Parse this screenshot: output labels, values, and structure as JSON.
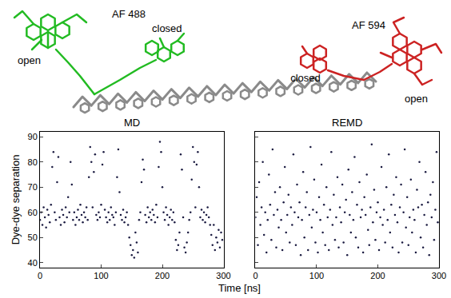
{
  "molecule": {
    "donor": "AF 488",
    "acceptor": "AF 594",
    "donor_color": "#22bb22",
    "acceptor_color": "#cc2222",
    "donor_states": [
      "open",
      "closed"
    ],
    "acceptor_states": [
      "closed",
      "open"
    ]
  },
  "shared_x_label": "Time [ns]",
  "chart_data": [
    {
      "type": "scatter",
      "title": "MD",
      "ylabel": "Dye-dye separation",
      "color": "#1a1a40",
      "marker": "dot",
      "xlim": [
        0,
        300
      ],
      "xticks": [
        0,
        100,
        200,
        300
      ],
      "ylim": [
        38,
        92
      ],
      "yticks": [
        40,
        50,
        60,
        70,
        80,
        90
      ],
      "x": [
        0,
        2,
        4,
        6,
        8,
        10,
        12,
        14,
        16,
        18,
        20,
        22,
        24,
        26,
        28,
        30,
        32,
        34,
        36,
        38,
        40,
        42,
        44,
        46,
        48,
        50,
        52,
        54,
        56,
        58,
        60,
        62,
        64,
        66,
        68,
        70,
        72,
        74,
        76,
        78,
        80,
        82,
        84,
        86,
        88,
        90,
        92,
        94,
        96,
        98,
        100,
        102,
        104,
        106,
        108,
        110,
        112,
        114,
        116,
        118,
        120,
        122,
        124,
        126,
        128,
        130,
        132,
        134,
        136,
        138,
        140,
        142,
        144,
        146,
        148,
        150,
        152,
        154,
        156,
        158,
        160,
        162,
        164,
        166,
        168,
        170,
        172,
        174,
        176,
        178,
        180,
        182,
        184,
        186,
        188,
        190,
        192,
        194,
        196,
        198,
        200,
        202,
        204,
        206,
        208,
        210,
        212,
        214,
        216,
        218,
        220,
        222,
        224,
        226,
        228,
        230,
        232,
        234,
        236,
        238,
        240,
        242,
        244,
        246,
        248,
        250,
        252,
        254,
        256,
        258,
        260,
        262,
        264,
        266,
        268,
        270,
        272,
        274,
        276,
        278,
        280,
        282,
        284,
        286,
        288,
        290,
        292,
        294,
        296,
        298
      ],
      "values": [
        57,
        60,
        55,
        62,
        58,
        54,
        61,
        59,
        56,
        63,
        78,
        84,
        60,
        57,
        72,
        82,
        58,
        55,
        61,
        59,
        56,
        62,
        58,
        66,
        60,
        80,
        71,
        57,
        60,
        55,
        58,
        61,
        57,
        63,
        59,
        56,
        60,
        58,
        62,
        57,
        74,
        86,
        80,
        62,
        76,
        83,
        59,
        57,
        60,
        58,
        63,
        79,
        84,
        61,
        58,
        56,
        60,
        57,
        62,
        59,
        58,
        55,
        60,
        74,
        85,
        68,
        59,
        57,
        61,
        56,
        58,
        60,
        55,
        50,
        47,
        43,
        45,
        42,
        52,
        48,
        44,
        57,
        60,
        72,
        81,
        77,
        59,
        56,
        62,
        58,
        60,
        57,
        61,
        59,
        56,
        63,
        58,
        78,
        88,
        84,
        70,
        60,
        57,
        62,
        59,
        55,
        58,
        61,
        57,
        60,
        56,
        49,
        45,
        47,
        52,
        83,
        77,
        58,
        46,
        44,
        48,
        52,
        57,
        60,
        73,
        86,
        80,
        62,
        79,
        84,
        70,
        58,
        61,
        57,
        60,
        56,
        59,
        62,
        58,
        55,
        51,
        47,
        55,
        45,
        50,
        48,
        53,
        46,
        52,
        49
      ]
    },
    {
      "type": "scatter",
      "title": "REMD",
      "color": "#1a1a40",
      "marker": "dot",
      "tick_labels": "x",
      "xlim": [
        0,
        300
      ],
      "xticks": [
        0,
        100,
        200,
        300
      ],
      "ylim": [
        38,
        92
      ],
      "yticks": [
        40,
        50,
        60,
        70,
        80,
        90
      ],
      "x": [
        0,
        2,
        4,
        6,
        8,
        10,
        12,
        14,
        16,
        18,
        20,
        22,
        24,
        26,
        28,
        30,
        32,
        34,
        36,
        38,
        40,
        42,
        44,
        46,
        48,
        50,
        52,
        54,
        56,
        58,
        60,
        62,
        64,
        66,
        68,
        70,
        72,
        74,
        76,
        78,
        80,
        82,
        84,
        86,
        88,
        90,
        92,
        94,
        96,
        98,
        100,
        102,
        104,
        106,
        108,
        110,
        112,
        114,
        116,
        118,
        120,
        122,
        124,
        126,
        128,
        130,
        132,
        134,
        136,
        138,
        140,
        142,
        144,
        146,
        148,
        150,
        152,
        154,
        156,
        158,
        160,
        162,
        164,
        166,
        168,
        170,
        172,
        174,
        176,
        178,
        180,
        182,
        184,
        186,
        188,
        190,
        192,
        194,
        196,
        198,
        200,
        202,
        204,
        206,
        208,
        210,
        212,
        214,
        216,
        218,
        220,
        222,
        224,
        226,
        228,
        230,
        232,
        234,
        236,
        238,
        240,
        242,
        244,
        246,
        248,
        250,
        252,
        254,
        256,
        258,
        260,
        262,
        264,
        266,
        268,
        270,
        272,
        274,
        276,
        278,
        280,
        282,
        284,
        286,
        288,
        290,
        292,
        294,
        296,
        298
      ],
      "values": [
        58,
        66,
        47,
        72,
        55,
        62,
        80,
        51,
        60,
        44,
        57,
        75,
        63,
        49,
        85,
        59,
        68,
        46,
        61,
        54,
        70,
        57,
        45,
        64,
        78,
        52,
        59,
        67,
        48,
        62,
        55,
        83,
        60,
        47,
        71,
        58,
        64,
        43,
        57,
        76,
        50,
        62,
        68,
        45,
        59,
        86,
        54,
        61,
        73,
        48,
        60,
        44,
        66,
        57,
        79,
        52,
        63,
        47,
        70,
        58,
        45,
        61,
        84,
        55,
        67,
        49,
        58,
        74,
        46,
        62,
        56,
        71,
        48,
        60,
        65,
        43,
        77,
        59,
        52,
        68,
        57,
        82,
        50,
        63,
        46,
        72,
        58,
        61,
        44,
        66,
        59,
        75,
        53,
        47,
        62,
        87,
        56,
        69,
        49,
        60,
        64,
        45,
        58,
        78,
        55,
        61,
        48,
        70,
        57,
        83,
        52,
        63,
        46,
        67,
        59,
        74,
        56,
        44,
        62,
        71,
        48,
        60,
        85,
        54,
        66,
        47,
        58,
        73,
        52,
        61,
        57,
        44,
        69,
        62,
        80,
        50,
        63,
        46,
        59,
        76,
        55,
        64,
        43,
        67,
        58,
        72,
        49,
        61,
        84,
        56
      ]
    }
  ]
}
